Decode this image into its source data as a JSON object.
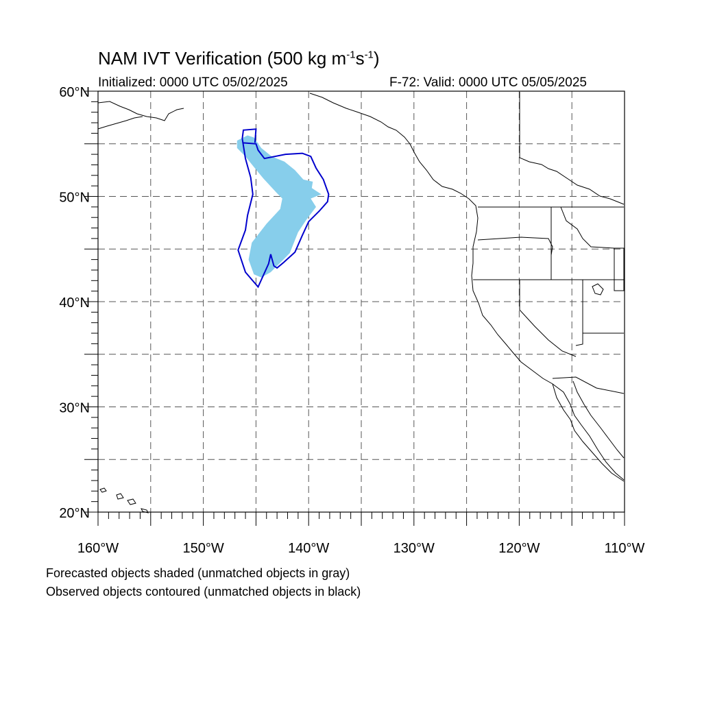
{
  "header": {
    "title_main": "NAM IVT Verification (500 kg m",
    "title_sup1": "-1",
    "title_mid": "s",
    "title_sup2": "-1",
    "title_end": ")",
    "initialized": "Initialized: 0000 UTC 05/02/2025",
    "valid": "F-72: Valid: 0000 UTC 05/05/2025"
  },
  "map": {
    "lon_range": [
      -160,
      -110
    ],
    "lat_range": [
      20,
      60
    ],
    "lat_labels": [
      {
        "lat": 60,
        "text": "60°N"
      },
      {
        "lat": 50,
        "text": "50°N"
      },
      {
        "lat": 40,
        "text": "40°N"
      },
      {
        "lat": 30,
        "text": "30°N"
      },
      {
        "lat": 20,
        "text": "20°N"
      }
    ],
    "lon_labels": [
      {
        "lon": -160,
        "text": "160°W"
      },
      {
        "lon": -150,
        "text": "150°W"
      },
      {
        "lon": -140,
        "text": "140°W"
      },
      {
        "lon": -130,
        "text": "130°W"
      },
      {
        "lon": -120,
        "text": "120°W"
      },
      {
        "lon": -110,
        "text": "110°W"
      }
    ],
    "grid_lats": [
      25,
      30,
      35,
      40,
      45,
      50,
      55
    ],
    "grid_lons": [
      -155,
      -150,
      -145,
      -140,
      -135,
      -130,
      -125,
      -120,
      -115
    ],
    "forecast_color": "#87ceeb",
    "observed_color": "#0000cd",
    "coast_color": "#000000",
    "forecast_object": [
      [
        -146.8,
        55.3
      ],
      [
        -145.8,
        55.8
      ],
      [
        -145.2,
        55.6
      ],
      [
        -144.5,
        54.6
      ],
      [
        -143.5,
        53.8
      ],
      [
        -142.3,
        53.3
      ],
      [
        -141.3,
        52.5
      ],
      [
        -140.5,
        51.6
      ],
      [
        -139.6,
        51.4
      ],
      [
        -139.7,
        50.8
      ],
      [
        -138.8,
        50.2
      ],
      [
        -139.8,
        49.8
      ],
      [
        -139.3,
        49.0
      ],
      [
        -140.2,
        47.8
      ],
      [
        -141.0,
        46.6
      ],
      [
        -141.8,
        44.6
      ],
      [
        -142.6,
        43.8
      ],
      [
        -143.6,
        42.8
      ],
      [
        -144.5,
        42.3
      ],
      [
        -145.2,
        42.6
      ],
      [
        -145.7,
        44.0
      ],
      [
        -145.4,
        45.6
      ],
      [
        -144.0,
        47.4
      ],
      [
        -142.7,
        48.8
      ],
      [
        -142.5,
        49.8
      ],
      [
        -143.0,
        50.3
      ],
      [
        -144.3,
        51.7
      ],
      [
        -145.2,
        52.8
      ],
      [
        -146.0,
        53.8
      ],
      [
        -146.8,
        54.6
      ]
    ],
    "observed_object": [
      [
        -146.3,
        55.1
      ],
      [
        -145.0,
        55.0
      ],
      [
        -144.8,
        54.4
      ],
      [
        -144.2,
        53.6
      ],
      [
        -142.2,
        54.0
      ],
      [
        -140.6,
        54.1
      ],
      [
        -139.8,
        53.8
      ],
      [
        -139.3,
        52.7
      ],
      [
        -138.6,
        51.6
      ],
      [
        -138.1,
        50.2
      ],
      [
        -138.2,
        49.5
      ],
      [
        -139.0,
        48.6
      ],
      [
        -140.0,
        47.6
      ],
      [
        -140.6,
        46.3
      ],
      [
        -141.3,
        44.7
      ],
      [
        -142.4,
        43.7
      ],
      [
        -143.0,
        43.2
      ],
      [
        -143.3,
        43.4
      ],
      [
        -143.6,
        44.5
      ],
      [
        -143.8,
        43.6
      ],
      [
        -144.8,
        41.4
      ],
      [
        -146.0,
        42.8
      ],
      [
        -146.7,
        44.9
      ],
      [
        -146.0,
        46.8
      ],
      [
        -145.8,
        48.2
      ],
      [
        -145.3,
        50.2
      ],
      [
        -145.5,
        51.8
      ],
      [
        -146.0,
        53.6
      ],
      [
        -146.3,
        55.5
      ],
      [
        -146.2,
        56.3
      ],
      [
        -145.0,
        56.4
      ],
      [
        -145.1,
        55.1
      ]
    ]
  },
  "notes": {
    "line1": "Forecasted objects shaded (unmatched objects in gray)",
    "line2": "Observed objects contoured (unmatched objects in black)"
  }
}
